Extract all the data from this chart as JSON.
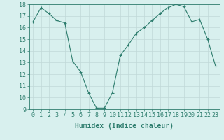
{
  "x": [
    0,
    1,
    2,
    3,
    4,
    5,
    6,
    7,
    8,
    9,
    10,
    11,
    12,
    13,
    14,
    15,
    16,
    17,
    18,
    19,
    20,
    21,
    22,
    23
  ],
  "y": [
    16.5,
    17.7,
    17.2,
    16.6,
    16.4,
    13.1,
    12.2,
    10.4,
    9.1,
    9.1,
    10.4,
    13.6,
    14.5,
    15.5,
    16.0,
    16.6,
    17.2,
    17.7,
    18.0,
    17.8,
    16.5,
    16.7,
    15.0,
    12.7
  ],
  "line_color": "#2e7d6e",
  "marker": "+",
  "marker_size": 3,
  "bg_color": "#d8f0ee",
  "grid_color": "#c0d8d8",
  "xlabel": "Humidex (Indice chaleur)",
  "xlim": [
    -0.5,
    23.5
  ],
  "ylim": [
    9,
    18
  ],
  "xticks": [
    0,
    1,
    2,
    3,
    4,
    5,
    6,
    7,
    8,
    9,
    10,
    11,
    12,
    13,
    14,
    15,
    16,
    17,
    18,
    19,
    20,
    21,
    22,
    23
  ],
  "yticks": [
    9,
    10,
    11,
    12,
    13,
    14,
    15,
    16,
    17,
    18
  ],
  "axis_color": "#2e7d6e",
  "tick_color": "#2e7d6e",
  "label_fontsize": 7,
  "tick_fontsize": 6
}
